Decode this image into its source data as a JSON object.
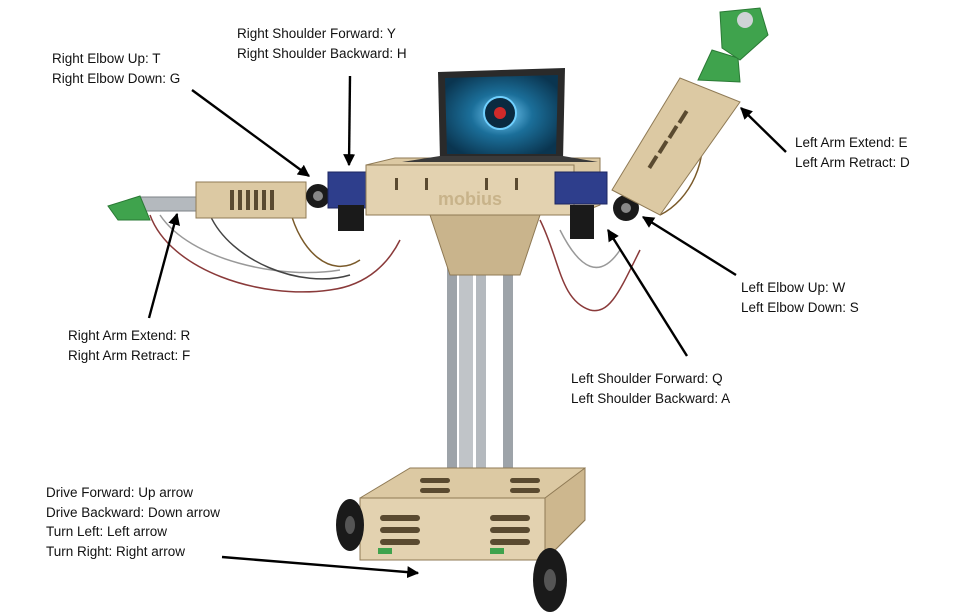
{
  "labels": {
    "right_elbow": [
      "Right Elbow Up: T",
      "Right Elbow Down: G"
    ],
    "right_shoulder": [
      "Right Shoulder Forward: Y",
      "Right Shoulder Backward: H"
    ],
    "left_arm": [
      "Left Arm Extend: E",
      "Left Arm Retract: D"
    ],
    "left_elbow": [
      "Left Elbow Up: W",
      "Left Elbow Down: S"
    ],
    "right_arm": [
      "Right Arm Extend: R",
      "Right Arm Retract: F"
    ],
    "left_shoulder": [
      "Left Shoulder Forward: Q",
      "Left Shoulder Backward: A"
    ],
    "drive": [
      "Drive Forward: Up arrow",
      "Drive Backward: Down arrow",
      "Turn Left: Left arrow",
      "Turn Right: Right arrow"
    ]
  },
  "robot": {
    "body_text": "mobius"
  },
  "colors": {
    "wood": "#dcc9a3",
    "wood_dark": "#b89d72",
    "metal": "#a8adb3",
    "gripper": "#3fa34d",
    "servo": "#2e3e8c",
    "screen": "#1b6f9a",
    "wheel": "#1a1a1a",
    "arrow": "#000000"
  }
}
